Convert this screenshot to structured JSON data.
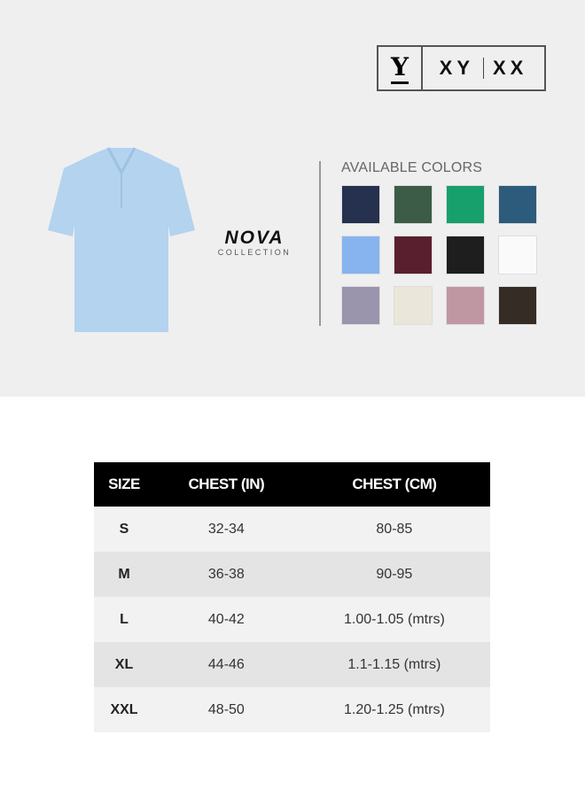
{
  "brand": {
    "mark": "Y",
    "left": "XY",
    "right": "XX"
  },
  "logo": {
    "name": "NOVA",
    "sub": "COLLECTION"
  },
  "product": {
    "shirt_color": "#b3d3ef"
  },
  "colors": {
    "title": "AVAILABLE COLORS",
    "swatches": [
      "#26304f",
      "#3d5c47",
      "#17a06b",
      "#2d5b7b",
      "#87b3ef",
      "#5a1f2e",
      "#1e1e1e",
      "#fafafa",
      "#9a94ad",
      "#ebe6da",
      "#bf97a2",
      "#352d25"
    ]
  },
  "size_chart": {
    "headers": [
      "SIZE",
      "CHEST (IN)",
      "CHEST (CM)"
    ],
    "rows": [
      [
        "S",
        "32-34",
        "80-85"
      ],
      [
        "M",
        "36-38",
        "90-95"
      ],
      [
        "L",
        "40-42",
        "1.00-1.05 (mtrs)"
      ],
      [
        "XL",
        "44-46",
        "1.1-1.15 (mtrs)"
      ],
      [
        "XXL",
        "48-50",
        "1.20-1.25 (mtrs)"
      ]
    ]
  }
}
